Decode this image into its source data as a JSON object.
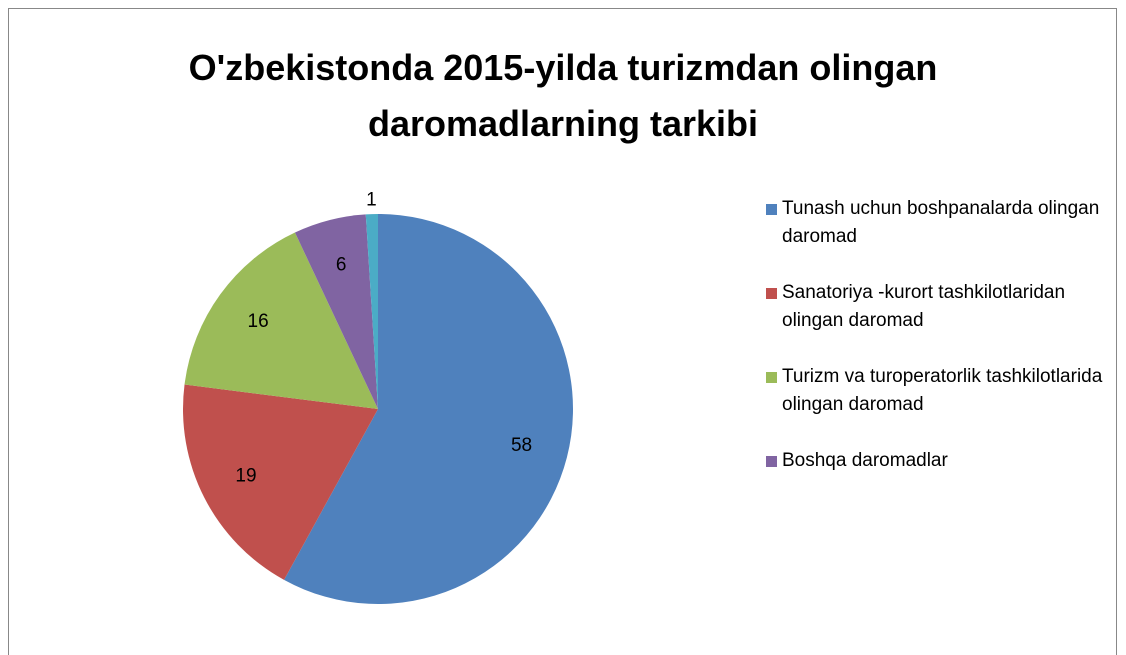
{
  "chart_data": {
    "type": "pie",
    "title": "O'zbekistonda 2015-yilda turizmdan olingan daromadlarning tarkibi",
    "categories": [
      "Tunash uchun boshpanalarda olingan daromad",
      "Sanatoriya -kurort tashkilotlaridan olingan daromad",
      "Turizm va turoperatorlik tashkilotlarida olingan daromad",
      "Boshqa daromadlar",
      null
    ],
    "values": [
      58,
      19,
      16,
      6,
      1
    ],
    "colors": [
      "#4f81bd",
      "#c0504d",
      "#9bbb59",
      "#8064a2",
      "#4bacc6"
    ],
    "legend": "right"
  }
}
